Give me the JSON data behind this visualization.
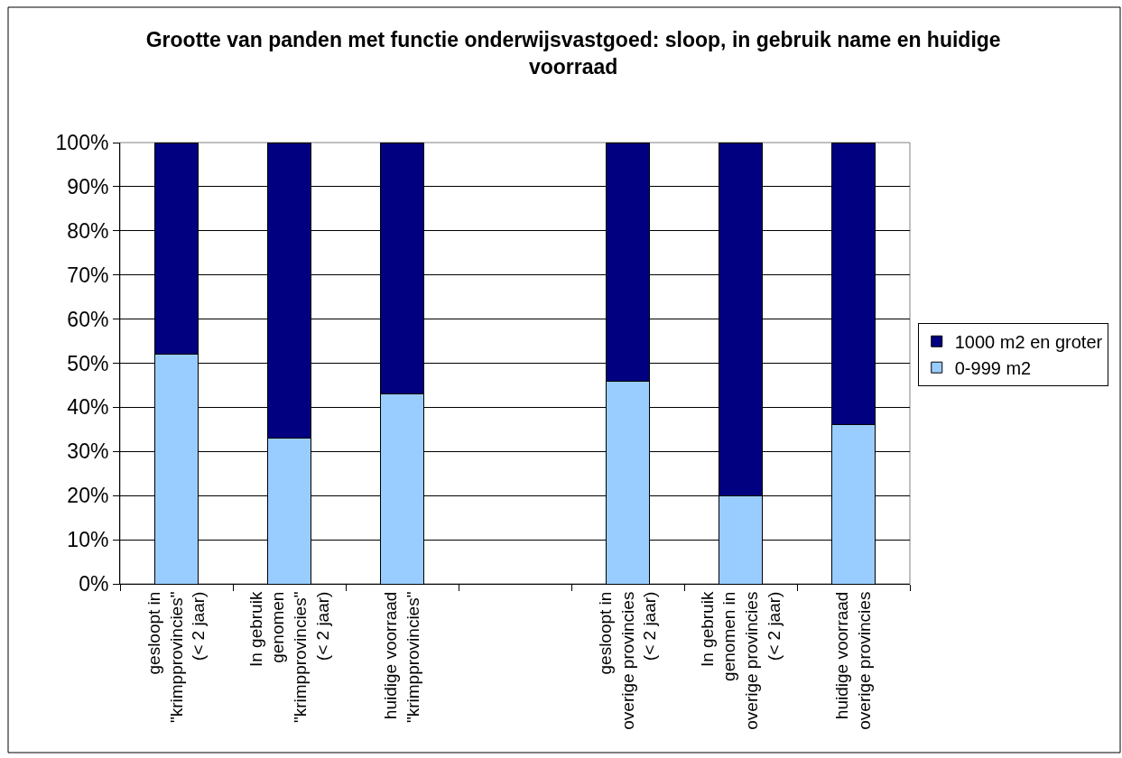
{
  "chart_data": {
    "type": "bar",
    "title": "Grootte van panden met functie onderwijsvastgoed: sloop, in gebruik name en huidige voorraad",
    "categories": [
      "gesloopt in\n\"krimpprovincies\"\n(< 2 jaar)",
      "In gebruik\ngenomen\n\"krimpprovincies\"\n(< 2 jaar)",
      "huidige voorraad\n\"krimpprovincies\"",
      null,
      "gesloopt in\noverige provincies\n(< 2 jaar)",
      "In gebruik\ngenomen in\noverige provincies\n(< 2 jaar)",
      "huidige voorraad\noverige provincies"
    ],
    "series": [
      {
        "name": "0-999 m2",
        "color": "#99ccff",
        "values": [
          52,
          33,
          43,
          null,
          46,
          20,
          36
        ]
      },
      {
        "name": "1000 m2 en groter",
        "color": "#000080",
        "values": [
          48,
          67,
          57,
          null,
          54,
          80,
          64
        ]
      }
    ],
    "stacked": true,
    "ylim": [
      0,
      100
    ],
    "yticks": [
      {
        "value": 0,
        "label": "0%"
      },
      {
        "value": 10,
        "label": "10%"
      },
      {
        "value": 20,
        "label": "20%"
      },
      {
        "value": 30,
        "label": "30%"
      },
      {
        "value": 40,
        "label": "40%"
      },
      {
        "value": 50,
        "label": "50%"
      },
      {
        "value": 60,
        "label": "60%"
      },
      {
        "value": 70,
        "label": "70%"
      },
      {
        "value": 80,
        "label": "80%"
      },
      {
        "value": 90,
        "label": "90%"
      },
      {
        "value": 100,
        "label": "100%"
      }
    ],
    "grid": "y",
    "legend": "right"
  }
}
